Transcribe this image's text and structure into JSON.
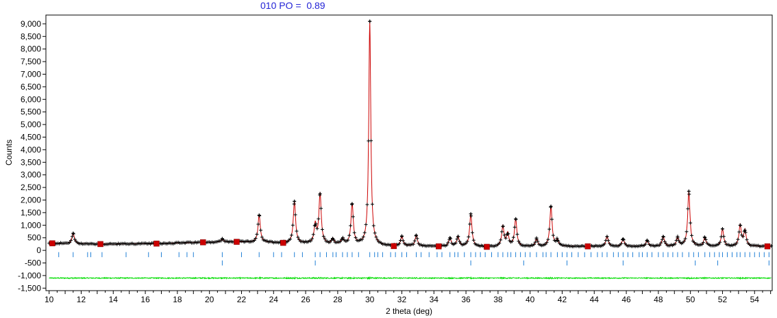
{
  "chart_data": {
    "type": "line",
    "title": "010 PO =  0.89",
    "xlabel": "2 theta (deg)",
    "ylabel": "Counts",
    "xlim": [
      9.8,
      55.1
    ],
    "ylim": [
      -1600,
      9350
    ],
    "xticks": [
      10,
      12,
      14,
      16,
      18,
      20,
      22,
      24,
      26,
      28,
      30,
      32,
      34,
      36,
      38,
      40,
      42,
      44,
      46,
      48,
      50,
      52,
      54
    ],
    "yticks": [
      -1500,
      -1000,
      -500,
      0,
      500,
      1000,
      1500,
      2000,
      2500,
      3000,
      3500,
      4000,
      4500,
      5000,
      5500,
      6000,
      6500,
      7000,
      7500,
      8000,
      8500,
      9000
    ],
    "ytick_labels": [
      "-1,500",
      "-1,000",
      "-500",
      "0",
      "500",
      "1,000",
      "1,500",
      "2,000",
      "2,500",
      "3,000",
      "3,500",
      "4,000",
      "4,500",
      "5,000",
      "5,500",
      "6,000",
      "6,500",
      "7,000",
      "7,500",
      "8,000",
      "8,500",
      "9,000"
    ],
    "background": [
      {
        "x": 10.2,
        "y": 280
      },
      {
        "x": 13.2,
        "y": 250
      },
      {
        "x": 16.7,
        "y": 270
      },
      {
        "x": 19.6,
        "y": 320
      },
      {
        "x": 21.7,
        "y": 340
      },
      {
        "x": 24.6,
        "y": 300
      },
      {
        "x": 31.5,
        "y": 170
      },
      {
        "x": 34.3,
        "y": 160
      },
      {
        "x": 37.3,
        "y": 140
      },
      {
        "x": 43.6,
        "y": 160
      },
      {
        "x": 54.8,
        "y": 160
      }
    ],
    "peaks": [
      {
        "x": 11.5,
        "y": 680
      },
      {
        "x": 20.8,
        "y": 450
      },
      {
        "x": 23.1,
        "y": 1400
      },
      {
        "x": 25.3,
        "y": 1950
      },
      {
        "x": 26.6,
        "y": 1000
      },
      {
        "x": 26.9,
        "y": 2250
      },
      {
        "x": 27.7,
        "y": 450
      },
      {
        "x": 28.3,
        "y": 450
      },
      {
        "x": 28.9,
        "y": 1850
      },
      {
        "x": 30.0,
        "y": 9100
      },
      {
        "x": 32.0,
        "y": 550
      },
      {
        "x": 32.9,
        "y": 600
      },
      {
        "x": 35.0,
        "y": 500
      },
      {
        "x": 35.5,
        "y": 550
      },
      {
        "x": 36.3,
        "y": 1450
      },
      {
        "x": 38.3,
        "y": 950
      },
      {
        "x": 38.6,
        "y": 650
      },
      {
        "x": 39.1,
        "y": 1250
      },
      {
        "x": 40.4,
        "y": 450
      },
      {
        "x": 41.3,
        "y": 1750
      },
      {
        "x": 41.7,
        "y": 400
      },
      {
        "x": 44.8,
        "y": 550
      },
      {
        "x": 45.8,
        "y": 450
      },
      {
        "x": 47.3,
        "y": 400
      },
      {
        "x": 48.3,
        "y": 550
      },
      {
        "x": 49.2,
        "y": 500
      },
      {
        "x": 49.9,
        "y": 2350
      },
      {
        "x": 50.9,
        "y": 500
      },
      {
        "x": 52.0,
        "y": 850
      },
      {
        "x": 53.1,
        "y": 1000
      },
      {
        "x": 53.4,
        "y": 800
      }
    ],
    "series": [
      {
        "color": "#000000",
        "marker": "+"
      },
      {
        "color": "#cc0000",
        "marker": "line"
      },
      {
        "color": "#cc0000",
        "marker": "square"
      },
      {
        "color": "#00dd00",
        "marker": "line",
        "offset": -1100
      },
      {
        "color": "#1f7fd6",
        "marker": "tick"
      }
    ],
    "reflection_ticks_row1": [
      10.6,
      11.5,
      12.4,
      12.6,
      13.3,
      14.8,
      16.2,
      17.0,
      18.1,
      18.6,
      19.0,
      20.8,
      22.0,
      23.1,
      24.0,
      24.5,
      25.3,
      25.8,
      26.6,
      26.9,
      27.3,
      27.7,
      27.9,
      28.3,
      28.6,
      28.9,
      29.3,
      30.0,
      30.3,
      30.5,
      30.8,
      31.3,
      31.6,
      32.0,
      32.3,
      32.9,
      33.2,
      33.7,
      34.2,
      34.5,
      35.0,
      35.3,
      35.5,
      35.9,
      36.3,
      36.6,
      36.9,
      37.2,
      37.6,
      38.0,
      38.3,
      38.6,
      38.8,
      39.1,
      39.4,
      39.7,
      40.0,
      40.4,
      40.8,
      41.0,
      41.3,
      41.7,
      42.0,
      42.3,
      42.6,
      43.0,
      43.4,
      43.8,
      44.2,
      44.5,
      44.8,
      45.2,
      45.5,
      45.8,
      46.1,
      46.4,
      46.8,
      47.0,
      47.3,
      47.6,
      48.0,
      48.3,
      48.6,
      48.9,
      49.2,
      49.5,
      49.9,
      50.2,
      50.5,
      50.9,
      51.2,
      51.5,
      51.8,
      52.0,
      52.3,
      52.6,
      52.9,
      53.1,
      53.4,
      53.7,
      54.0,
      54.3,
      54.6,
      54.9
    ],
    "reflection_ticks_row2": [
      20.8,
      26.6,
      36.3,
      39.6,
      42.3,
      45.8,
      50.3,
      51.7,
      54.9
    ]
  }
}
